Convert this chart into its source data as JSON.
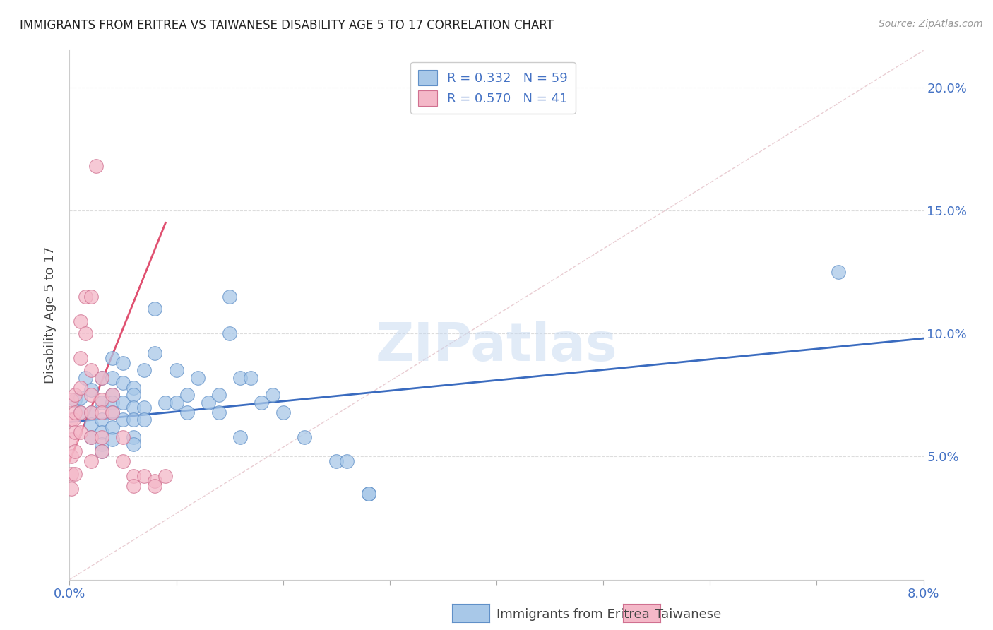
{
  "title": "IMMIGRANTS FROM ERITREA VS TAIWANESE DISABILITY AGE 5 TO 17 CORRELATION CHART",
  "source": "Source: ZipAtlas.com",
  "ylabel": "Disability Age 5 to 17",
  "ytick_values": [
    0.05,
    0.1,
    0.15,
    0.2
  ],
  "xlim": [
    0.0,
    0.08
  ],
  "ylim": [
    0.0,
    0.215
  ],
  "blue_label": "Immigrants from Eritrea",
  "pink_label": "Taiwanese",
  "blue_R": "R = 0.332",
  "blue_N": "N = 59",
  "pink_R": "R = 0.570",
  "pink_N": "N = 41",
  "blue_color": "#a8c8e8",
  "pink_color": "#f4b8c8",
  "blue_line_color": "#3a6bbf",
  "pink_line_color": "#e05070",
  "diagonal_color": "#e0b8c0",
  "title_color": "#222222",
  "axis_label_color": "#4472c4",
  "legend_R_color": "#4472c4",
  "blue_scatter": [
    [
      0.0005,
      0.073
    ],
    [
      0.001,
      0.074
    ],
    [
      0.001,
      0.068
    ],
    [
      0.0015,
      0.082
    ],
    [
      0.002,
      0.077
    ],
    [
      0.002,
      0.068
    ],
    [
      0.002,
      0.063
    ],
    [
      0.002,
      0.058
    ],
    [
      0.003,
      0.082
    ],
    [
      0.003,
      0.072
    ],
    [
      0.003,
      0.065
    ],
    [
      0.003,
      0.06
    ],
    [
      0.003,
      0.055
    ],
    [
      0.003,
      0.052
    ],
    [
      0.004,
      0.09
    ],
    [
      0.004,
      0.082
    ],
    [
      0.004,
      0.075
    ],
    [
      0.004,
      0.072
    ],
    [
      0.004,
      0.068
    ],
    [
      0.004,
      0.062
    ],
    [
      0.004,
      0.057
    ],
    [
      0.005,
      0.088
    ],
    [
      0.005,
      0.08
    ],
    [
      0.005,
      0.072
    ],
    [
      0.005,
      0.065
    ],
    [
      0.006,
      0.078
    ],
    [
      0.006,
      0.075
    ],
    [
      0.006,
      0.07
    ],
    [
      0.006,
      0.065
    ],
    [
      0.006,
      0.058
    ],
    [
      0.006,
      0.055
    ],
    [
      0.007,
      0.085
    ],
    [
      0.007,
      0.07
    ],
    [
      0.007,
      0.065
    ],
    [
      0.008,
      0.11
    ],
    [
      0.008,
      0.092
    ],
    [
      0.009,
      0.072
    ],
    [
      0.01,
      0.085
    ],
    [
      0.01,
      0.072
    ],
    [
      0.011,
      0.075
    ],
    [
      0.011,
      0.068
    ],
    [
      0.012,
      0.082
    ],
    [
      0.013,
      0.072
    ],
    [
      0.014,
      0.075
    ],
    [
      0.014,
      0.068
    ],
    [
      0.015,
      0.115
    ],
    [
      0.015,
      0.1
    ],
    [
      0.016,
      0.082
    ],
    [
      0.016,
      0.058
    ],
    [
      0.017,
      0.082
    ],
    [
      0.018,
      0.072
    ],
    [
      0.019,
      0.075
    ],
    [
      0.02,
      0.068
    ],
    [
      0.022,
      0.058
    ],
    [
      0.025,
      0.048
    ],
    [
      0.026,
      0.048
    ],
    [
      0.028,
      0.035
    ],
    [
      0.028,
      0.035
    ],
    [
      0.072,
      0.125
    ]
  ],
  "pink_scatter": [
    [
      0.0002,
      0.073
    ],
    [
      0.0002,
      0.065
    ],
    [
      0.0002,
      0.057
    ],
    [
      0.0002,
      0.05
    ],
    [
      0.0002,
      0.043
    ],
    [
      0.0002,
      0.037
    ],
    [
      0.0004,
      0.065
    ],
    [
      0.0005,
      0.075
    ],
    [
      0.0005,
      0.068
    ],
    [
      0.0005,
      0.06
    ],
    [
      0.0005,
      0.052
    ],
    [
      0.0005,
      0.043
    ],
    [
      0.001,
      0.105
    ],
    [
      0.001,
      0.09
    ],
    [
      0.001,
      0.078
    ],
    [
      0.001,
      0.068
    ],
    [
      0.001,
      0.06
    ],
    [
      0.0015,
      0.115
    ],
    [
      0.0015,
      0.1
    ],
    [
      0.002,
      0.115
    ],
    [
      0.002,
      0.085
    ],
    [
      0.002,
      0.075
    ],
    [
      0.002,
      0.068
    ],
    [
      0.002,
      0.058
    ],
    [
      0.002,
      0.048
    ],
    [
      0.0025,
      0.168
    ],
    [
      0.003,
      0.082
    ],
    [
      0.003,
      0.073
    ],
    [
      0.003,
      0.068
    ],
    [
      0.003,
      0.058
    ],
    [
      0.003,
      0.052
    ],
    [
      0.004,
      0.075
    ],
    [
      0.004,
      0.068
    ],
    [
      0.005,
      0.058
    ],
    [
      0.005,
      0.048
    ],
    [
      0.006,
      0.042
    ],
    [
      0.006,
      0.038
    ],
    [
      0.007,
      0.042
    ],
    [
      0.008,
      0.04
    ],
    [
      0.008,
      0.038
    ],
    [
      0.009,
      0.042
    ]
  ],
  "blue_line_x": [
    0.0,
    0.08
  ],
  "blue_line_y": [
    0.064,
    0.098
  ],
  "pink_line_x": [
    0.0,
    0.009
  ],
  "pink_line_y": [
    0.048,
    0.145
  ],
  "xtick_positions": [
    0.0,
    0.01,
    0.02,
    0.03,
    0.04,
    0.05,
    0.06,
    0.07,
    0.08
  ],
  "xtick_show_labels": [
    true,
    false,
    false,
    false,
    false,
    false,
    false,
    false,
    true
  ]
}
